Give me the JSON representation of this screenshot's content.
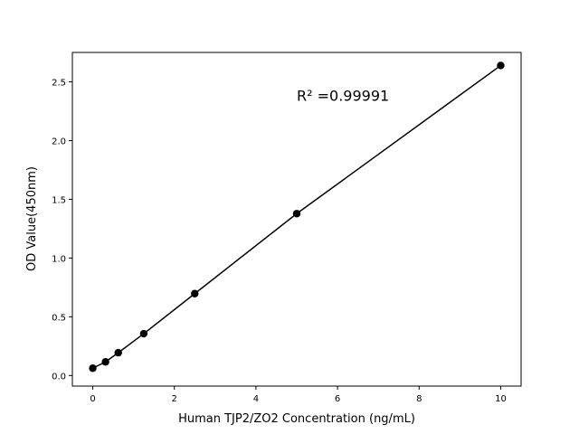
{
  "chart_data": {
    "type": "scatter",
    "title": "",
    "xlabel": "Human TJP2/ZO2 Concentration (ng/mL)",
    "ylabel": "OD Value(450nm)",
    "xlim": [
      -0.5,
      10.5
    ],
    "ylim": [
      -0.09,
      2.75
    ],
    "xticks": [
      0,
      2,
      4,
      6,
      8,
      10
    ],
    "yticks": [
      0.0,
      0.5,
      1.0,
      1.5,
      2.0,
      2.5
    ],
    "ytick_labels": [
      "0.0",
      "0.5",
      "1.0",
      "1.5",
      "2.0",
      "2.5"
    ],
    "grid": false,
    "series": [
      {
        "x": [
          0,
          0.3125,
          0.625,
          1.25,
          2.5,
          5,
          10
        ],
        "y": [
          0.062,
          0.116,
          0.194,
          0.356,
          0.697,
          1.378,
          2.639
        ],
        "color": "#000000",
        "marker": "circle",
        "line": true
      }
    ],
    "annotation": {
      "text": "R² =0.99991",
      "x": 5,
      "y": 2.37
    }
  }
}
